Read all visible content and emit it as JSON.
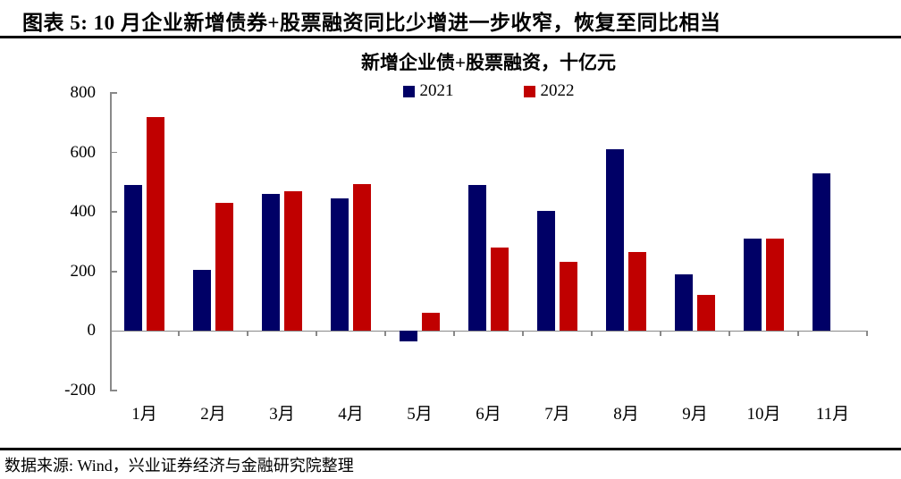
{
  "header": {
    "title": "图表 5: 10 月企业新增债券+股票融资同比少增进一步收窄，恢复至同比相当"
  },
  "chart_data": {
    "type": "bar",
    "title": "新增企业债+股票融资，十亿元",
    "unit": "十亿元",
    "categories": [
      "1月",
      "2月",
      "3月",
      "4月",
      "5月",
      "6月",
      "7月",
      "8月",
      "9月",
      "10月",
      "11月"
    ],
    "series": [
      {
        "name": "2021",
        "color": "#000066",
        "values": [
          490,
          205,
          460,
          445,
          -35,
          490,
          405,
          610,
          190,
          310,
          530
        ]
      },
      {
        "name": "2022",
        "color": "#C00000",
        "values": [
          720,
          430,
          470,
          495,
          60,
          280,
          232,
          265,
          120,
          312,
          null
        ]
      }
    ],
    "ylim": [
      -200,
      800
    ],
    "ytick_interval": 200,
    "grid": false,
    "legend_position": "top-center",
    "axis_color": "#898989"
  },
  "footer": {
    "source": "数据来源: Wind，兴业证券经济与金融研究院整理"
  }
}
